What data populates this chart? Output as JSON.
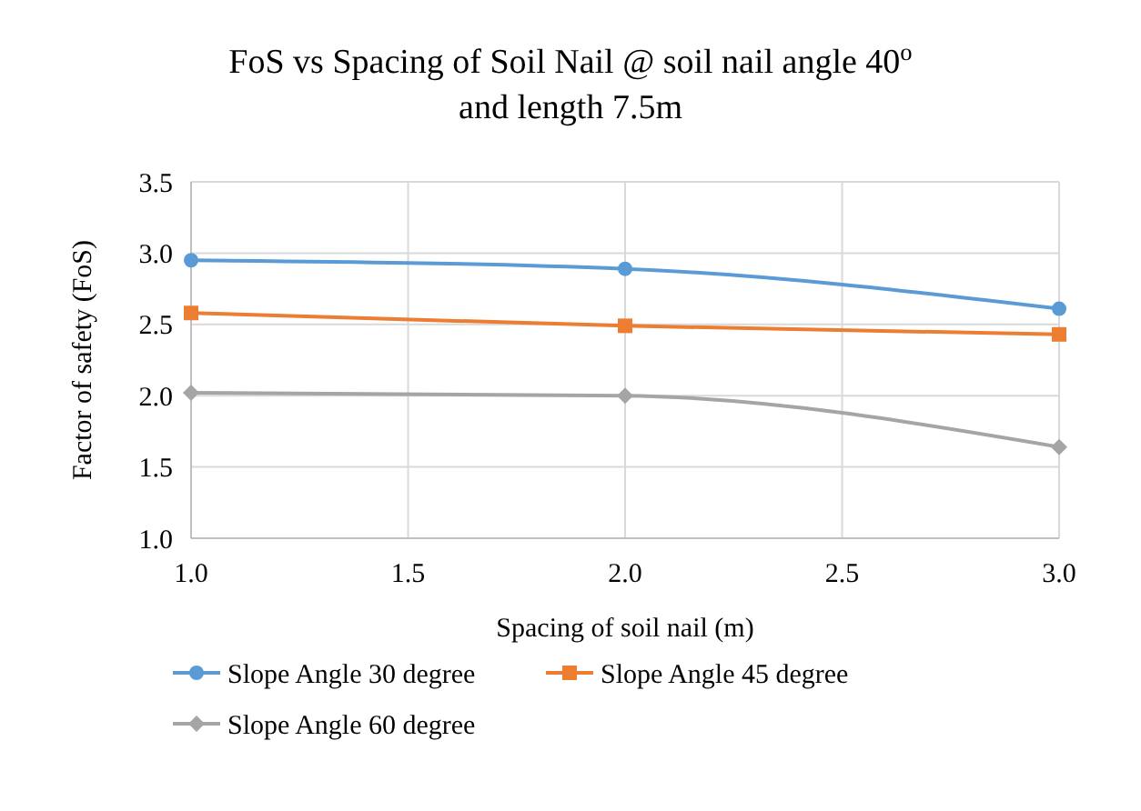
{
  "chart_data": {
    "type": "line",
    "title": "FoS vs Spacing of Soil Nail @ soil nail angle 40$^{o}$ and length 7.5m",
    "xlabel": "Spacing of soil nail (m)",
    "ylabel": "Factor of safety (FoS)",
    "x": [
      1.0,
      2.0,
      3.0
    ],
    "series": [
      {
        "name": "Slope Angle 30 degree",
        "color": "#5b9bd5",
        "values": [
          2.95,
          2.89,
          2.61
        ],
        "marker": "circle"
      },
      {
        "name": "Slope Angle 45 degree",
        "color": "#ed7d31",
        "values": [
          2.58,
          2.49,
          2.43
        ],
        "marker": "square"
      },
      {
        "name": "Slope Angle 60 degree",
        "color": "#a5a5a5",
        "values": [
          2.02,
          2.0,
          1.64
        ],
        "marker": "diamond"
      }
    ],
    "xlim": [
      1.0,
      3.0
    ],
    "xticks": [
      {
        "value": 1,
        "label": "1.0"
      },
      {
        "value": 1.5,
        "label": "1.5"
      },
      {
        "value": 2,
        "label": "2.0"
      },
      {
        "value": 2.5,
        "label": "2.5"
      },
      {
        "value": 3,
        "label": "3.0"
      }
    ],
    "ylim": [
      1.0,
      3.5
    ],
    "yticks": [
      {
        "value": 1,
        "label": "1.0"
      },
      {
        "value": 1.5,
        "label": "1.5"
      },
      {
        "value": 2,
        "label": "2.0"
      },
      {
        "value": 2.5,
        "label": "2.5"
      },
      {
        "value": 3,
        "label": "3.0"
      },
      {
        "value": 3.5,
        "label": "3.5"
      }
    ],
    "grid": true,
    "legend": "bottom",
    "line_style": "solid"
  }
}
